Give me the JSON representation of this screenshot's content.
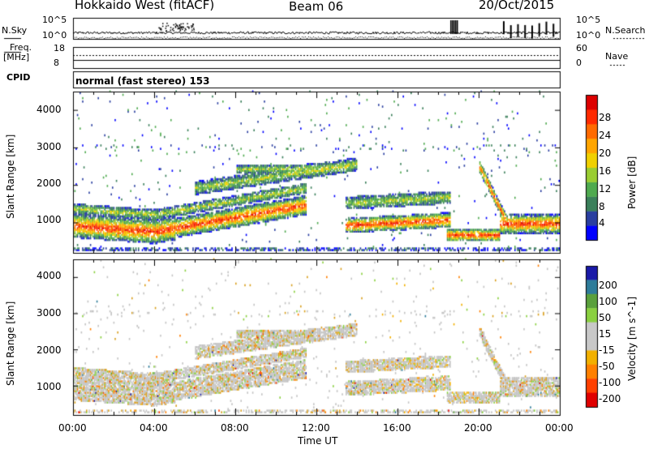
{
  "header": {
    "title": "Hokkaido West (fitACF)",
    "beam": "Beam 06",
    "date": "20/Oct/2015"
  },
  "top_panel": {
    "nsky_label": "N.Sky",
    "nsearch_label": "N.Search",
    "nsky_ticks": [
      "10^5",
      "10^0"
    ],
    "nsearch_ticks": [
      "10^5",
      "10^0"
    ],
    "freq_label_1": "Freq.",
    "freq_label_2": "[MHz]",
    "freq_ticks": [
      "18",
      "8"
    ],
    "nave_label": "Nave",
    "nave_ticks": [
      "60",
      "0"
    ],
    "cpid_label": "CPID",
    "cpid_value": "normal (fast stereo) 153"
  },
  "colors": {
    "power_scale": [
      "#0000ff",
      "#2a3fa0",
      "#3a7f5a",
      "#4faa4f",
      "#9acd32",
      "#f0d000",
      "#ffa500",
      "#ff6a00",
      "#ff2a00",
      "#dd0000"
    ],
    "velocity_scale": [
      "#1a1aa8",
      "#2e7c9a",
      "#5aa03c",
      "#8ad040",
      "#c8c8c8",
      "#c8c8c8",
      "#f2b000",
      "#ff8000",
      "#ff4000",
      "#e00000"
    ]
  },
  "chart_data": [
    {
      "type": "heatmap",
      "name": "Power",
      "ylabel": "Slant Range [km]",
      "xlabel": "Time UT",
      "x_ticks": [
        "00:00",
        "04:00",
        "08:00",
        "12:00",
        "16:00",
        "20:00",
        "00:00"
      ],
      "y_ticks": [
        "1000",
        "2000",
        "3000",
        "4000"
      ],
      "ylim": [
        200,
        4500
      ],
      "xlim_hours": [
        0,
        24
      ],
      "colorbar_label": "Power [dB]",
      "colorbar_ticks": [
        "28",
        "24",
        "20",
        "16",
        "12",
        "8",
        "4"
      ],
      "colorbar_range": [
        0,
        30
      ]
    },
    {
      "type": "heatmap",
      "name": "Velocity",
      "ylabel": "Slant Range [km]",
      "xlabel": "Time UT",
      "x_ticks": [
        "00:00",
        "04:00",
        "08:00",
        "12:00",
        "16:00",
        "20:00",
        "00:00"
      ],
      "y_ticks": [
        "1000",
        "2000",
        "3000",
        "4000"
      ],
      "ylim": [
        200,
        4500
      ],
      "xlim_hours": [
        0,
        24
      ],
      "colorbar_label": "Velocity [m s^-1]",
      "colorbar_ticks": [
        "200",
        "100",
        "50",
        "15",
        "-15",
        "-50",
        "-100",
        "-200"
      ],
      "colorbar_range": [
        -250,
        250
      ]
    }
  ],
  "x_axis": {
    "ticks": [
      "00:00",
      "04:00",
      "08:00",
      "12:00",
      "16:00",
      "20:00",
      "00:00"
    ],
    "label": "Time UT"
  }
}
